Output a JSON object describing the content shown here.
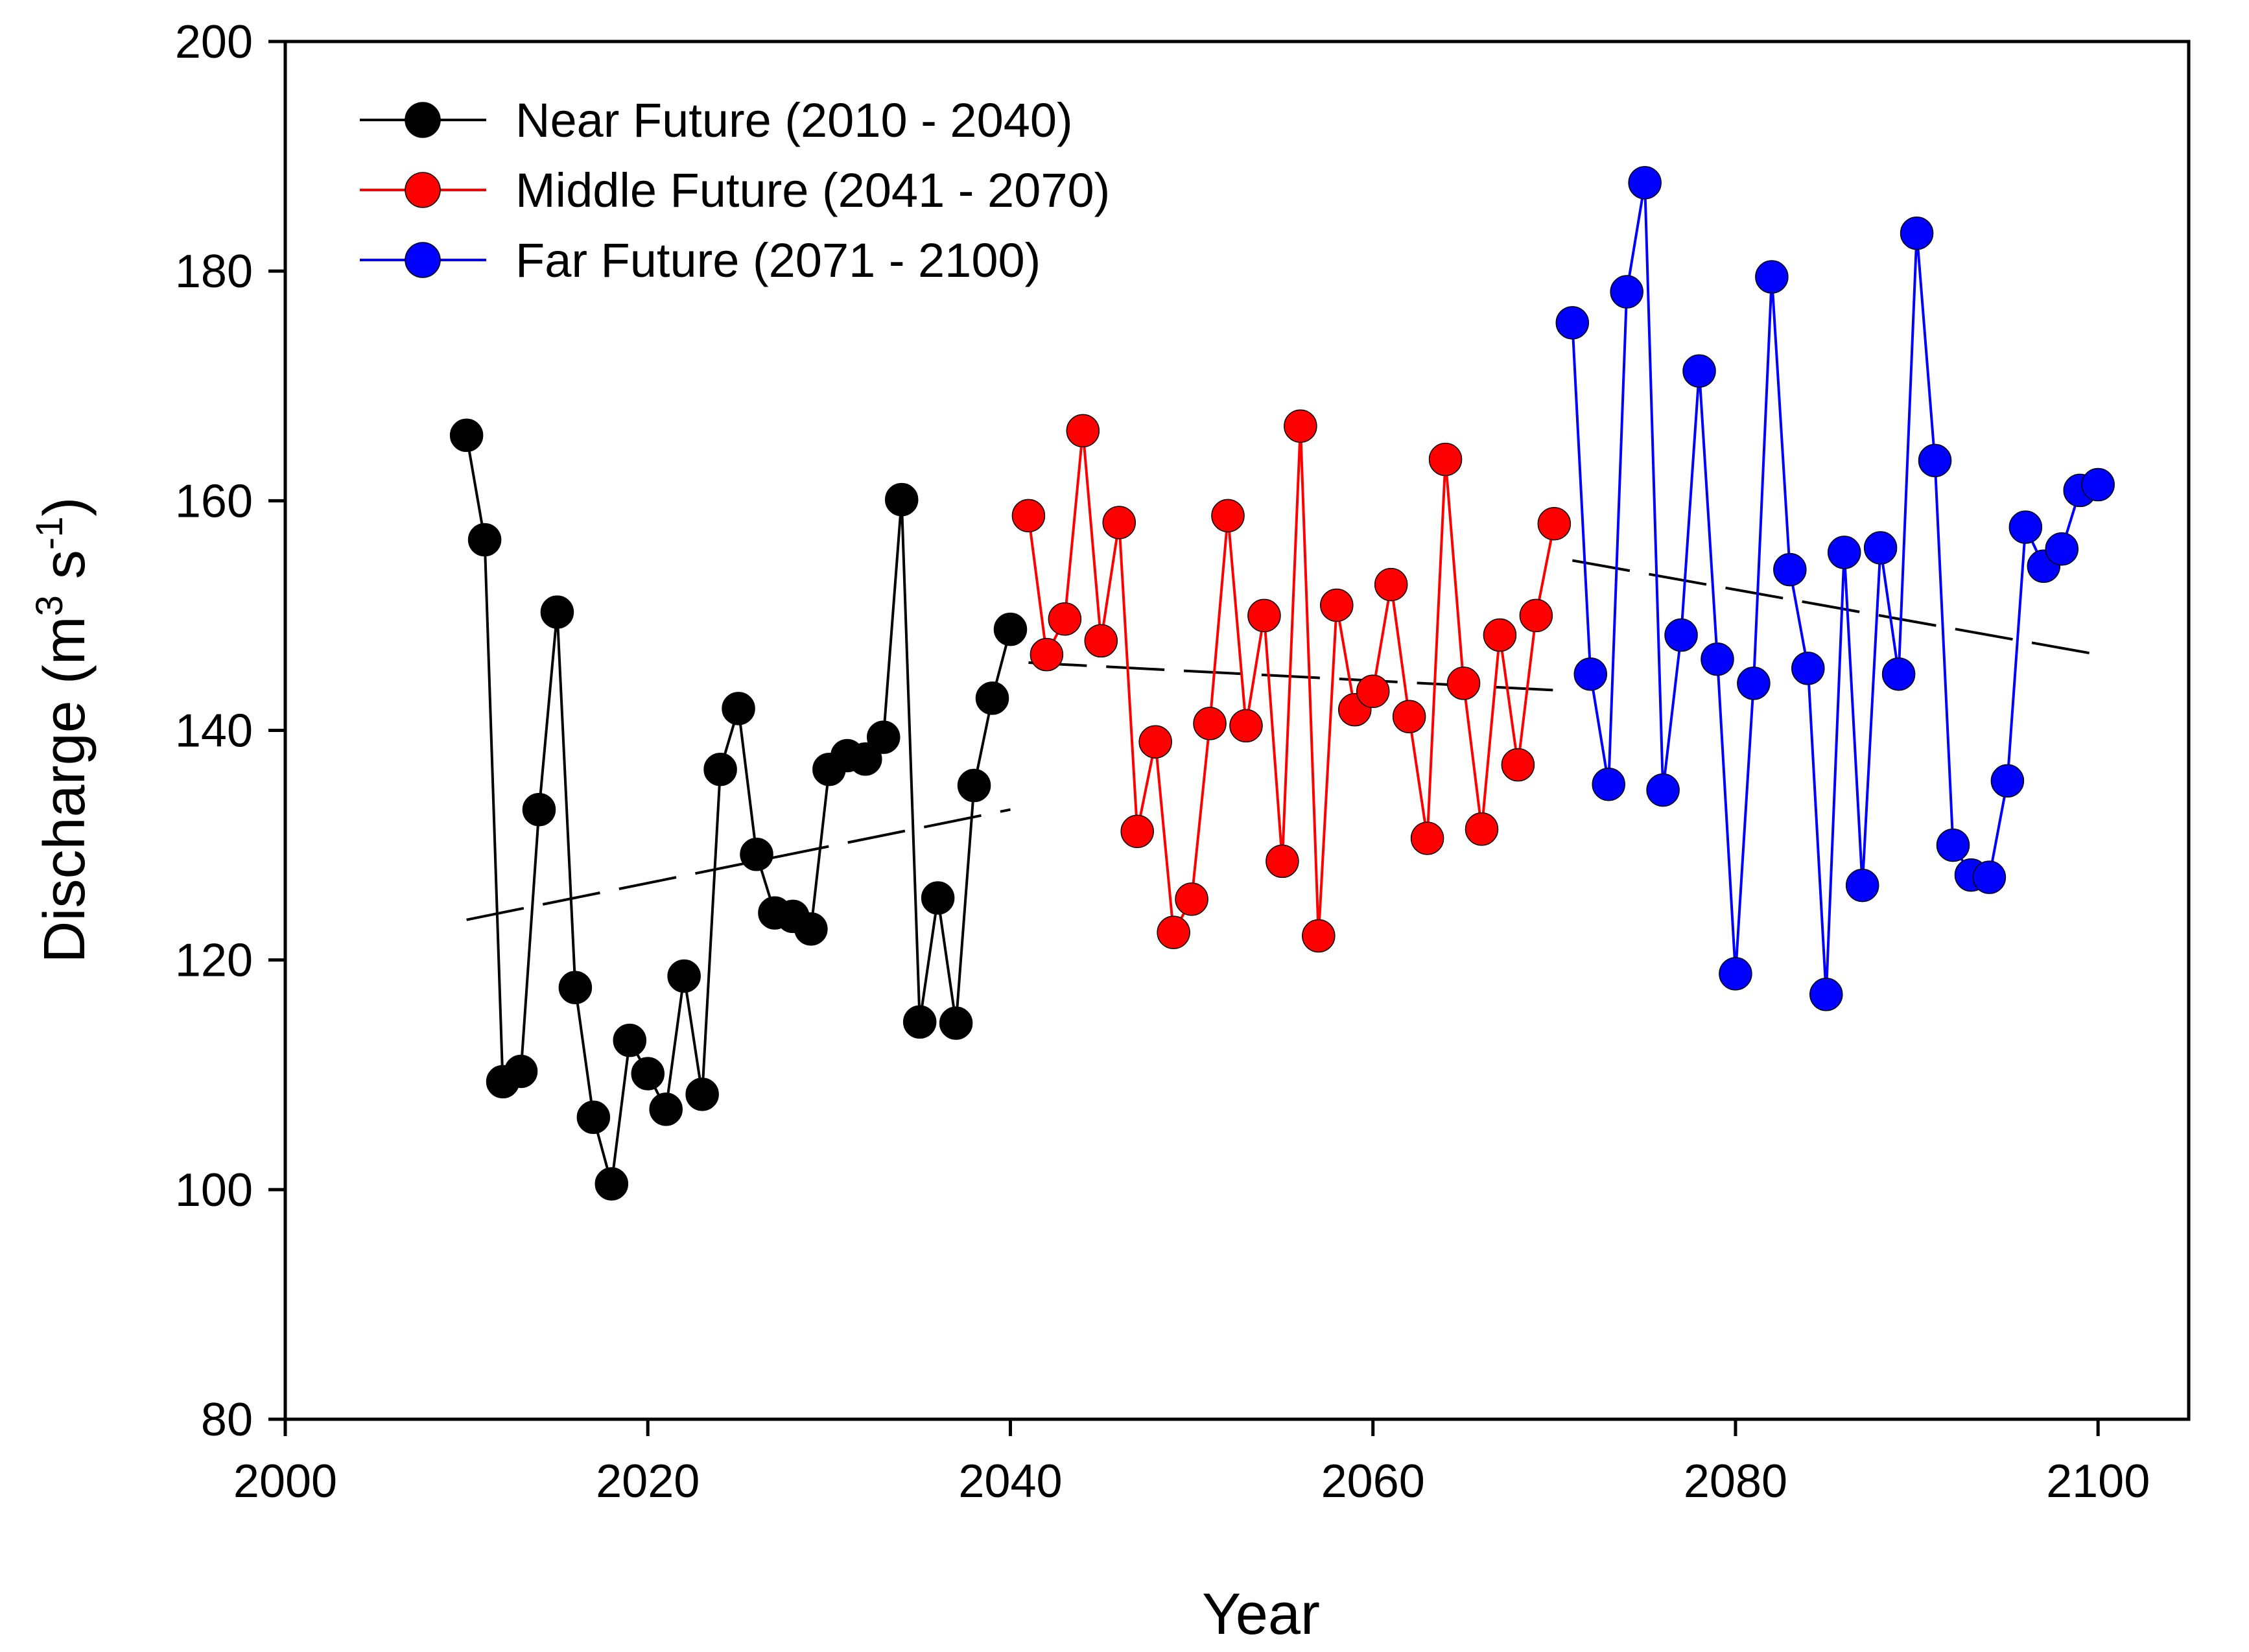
{
  "chart_data": {
    "type": "line",
    "title": "",
    "xlabel": "Year",
    "ylabel": {
      "prefix": "Discharge (m",
      "sup1": "3",
      "middle": " s",
      "sup2": "-1",
      "suffix": ")"
    },
    "xlim": [
      2000,
      2105
    ],
    "ylim": [
      80,
      200
    ],
    "xticks": [
      2000,
      2020,
      2040,
      2060,
      2080,
      2100
    ],
    "yticks": [
      80,
      100,
      120,
      140,
      160,
      180,
      200
    ],
    "grid": false,
    "legend_position": "top-left",
    "series": [
      {
        "name": "Near Future (2010 - 2040)",
        "color": "#000000",
        "x": [
          2010,
          2011,
          2012,
          2013,
          2014,
          2015,
          2016,
          2017,
          2018,
          2019,
          2020,
          2021,
          2022,
          2023,
          2024,
          2025,
          2026,
          2027,
          2028,
          2029,
          2030,
          2031,
          2032,
          2033,
          2034,
          2035,
          2036,
          2037,
          2038,
          2039,
          2040
        ],
        "y": [
          165.7,
          156.6,
          109.4,
          110.3,
          133.1,
          150.3,
          117.6,
          106.3,
          100.5,
          113.0,
          110.1,
          107.0,
          118.6,
          108.3,
          136.6,
          141.9,
          129.2,
          124.1,
          123.8,
          122.7,
          136.6,
          137.8,
          137.5,
          139.4,
          160.1,
          114.6,
          125.4,
          114.5,
          135.2,
          142.8,
          148.8
        ],
        "trend": {
          "x": [
            2010,
            2040
          ],
          "y": [
            123.5,
            133.1
          ]
        }
      },
      {
        "name": "Middle Future (2041 - 2070)",
        "color": "#ff0000",
        "x": [
          2041,
          2042,
          2043,
          2044,
          2045,
          2046,
          2047,
          2048,
          2049,
          2050,
          2051,
          2052,
          2053,
          2054,
          2055,
          2056,
          2057,
          2058,
          2059,
          2060,
          2061,
          2062,
          2063,
          2064,
          2065,
          2066,
          2067,
          2068,
          2069,
          2070
        ],
        "y": [
          158.7,
          146.6,
          149.7,
          166.1,
          147.8,
          158.1,
          131.2,
          139.0,
          122.4,
          125.3,
          140.6,
          158.7,
          140.4,
          150.0,
          128.6,
          166.5,
          122.1,
          150.9,
          141.8,
          143.4,
          152.7,
          141.2,
          130.6,
          163.6,
          144.1,
          131.4,
          148.3,
          137.0,
          150.0,
          158.0
        ],
        "trend": {
          "x": [
            2041,
            2070
          ],
          "y": [
            145.9,
            143.5
          ]
        }
      },
      {
        "name": "Far Future (2071 - 2100)",
        "color": "#0000ff",
        "x": [
          2071,
          2072,
          2073,
          2074,
          2075,
          2076,
          2077,
          2078,
          2079,
          2080,
          2081,
          2082,
          2083,
          2084,
          2085,
          2086,
          2087,
          2088,
          2089,
          2090,
          2091,
          2092,
          2093,
          2094,
          2095,
          2096,
          2097,
          2098,
          2099,
          2100
        ],
        "y": [
          175.5,
          144.9,
          135.3,
          178.2,
          187.7,
          134.8,
          148.3,
          171.3,
          146.2,
          118.8,
          144.1,
          179.5,
          154.0,
          145.4,
          117.0,
          155.5,
          126.5,
          155.9,
          144.9,
          183.3,
          163.5,
          130.0,
          127.4,
          127.2,
          135.6,
          157.7,
          154.3,
          155.8,
          160.9,
          161.4
        ],
        "trend": {
          "x": [
            2071,
            2100
          ],
          "y": [
            154.8,
            146.6
          ]
        }
      }
    ]
  }
}
